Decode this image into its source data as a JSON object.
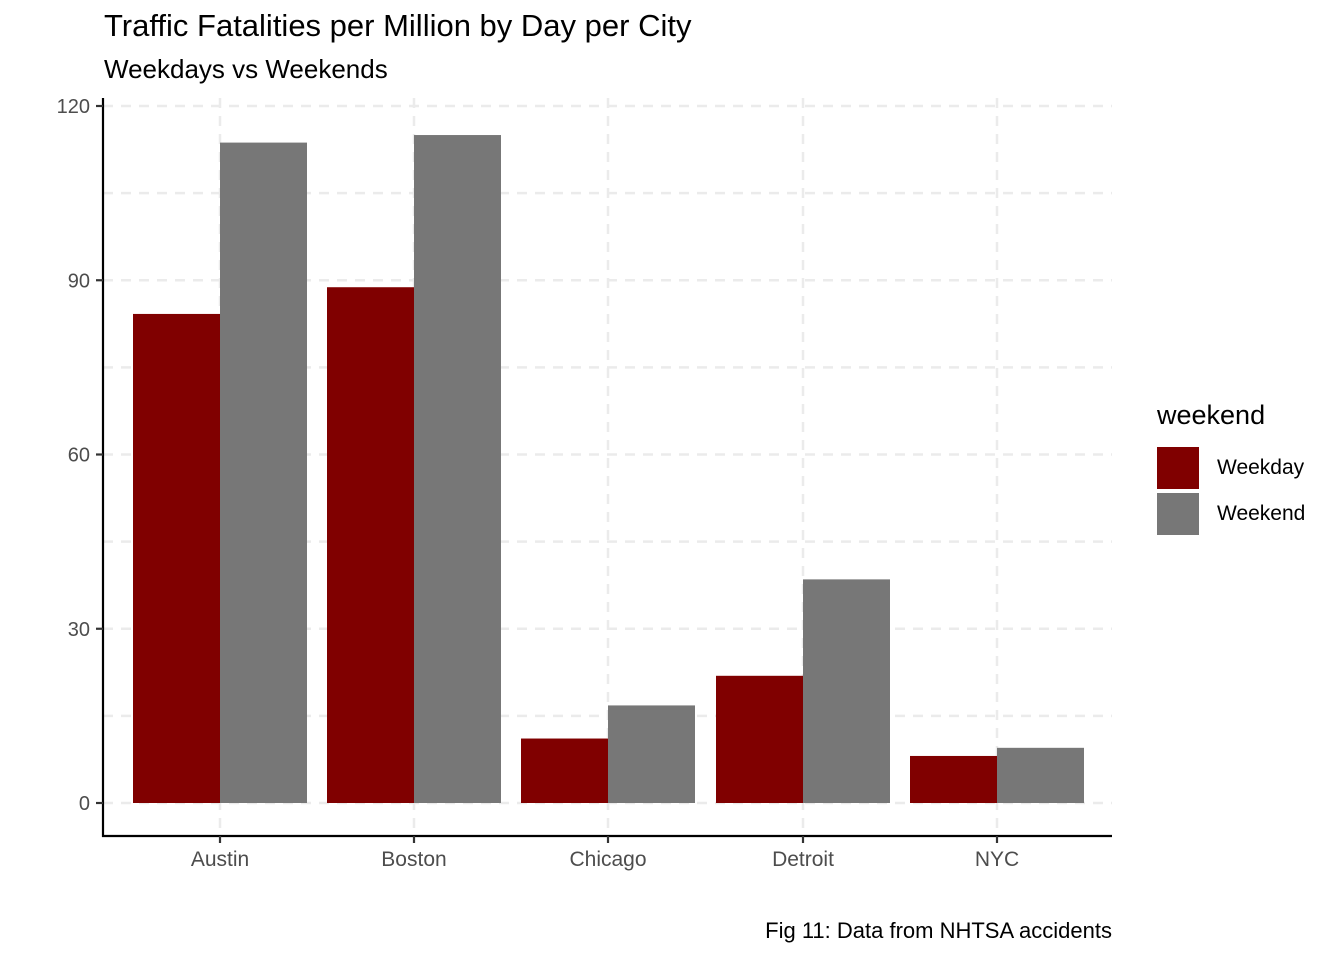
{
  "chart_data": {
    "type": "bar",
    "title": "Traffic Fatalities per Million by Day per City",
    "subtitle": "Weekdays vs Weekends",
    "caption": "Fig 11: Data from NHTSA accidents",
    "xlabel": "",
    "ylabel": "",
    "categories": [
      "Austin",
      "Boston",
      "Chicago",
      "Detroit",
      "NYC"
    ],
    "series": [
      {
        "name": "Weekday",
        "color": "#800000",
        "values": [
          84.2,
          88.8,
          11.1,
          21.9,
          8.1
        ]
      },
      {
        "name": "Weekend",
        "color": "#777777",
        "values": [
          113.7,
          115.0,
          16.8,
          38.5,
          9.5
        ]
      }
    ],
    "ylim": [
      0,
      120
    ],
    "yticks": [
      0,
      30,
      60,
      90,
      120
    ],
    "grid": true,
    "legend": {
      "title": "weekend",
      "position": "right"
    }
  }
}
